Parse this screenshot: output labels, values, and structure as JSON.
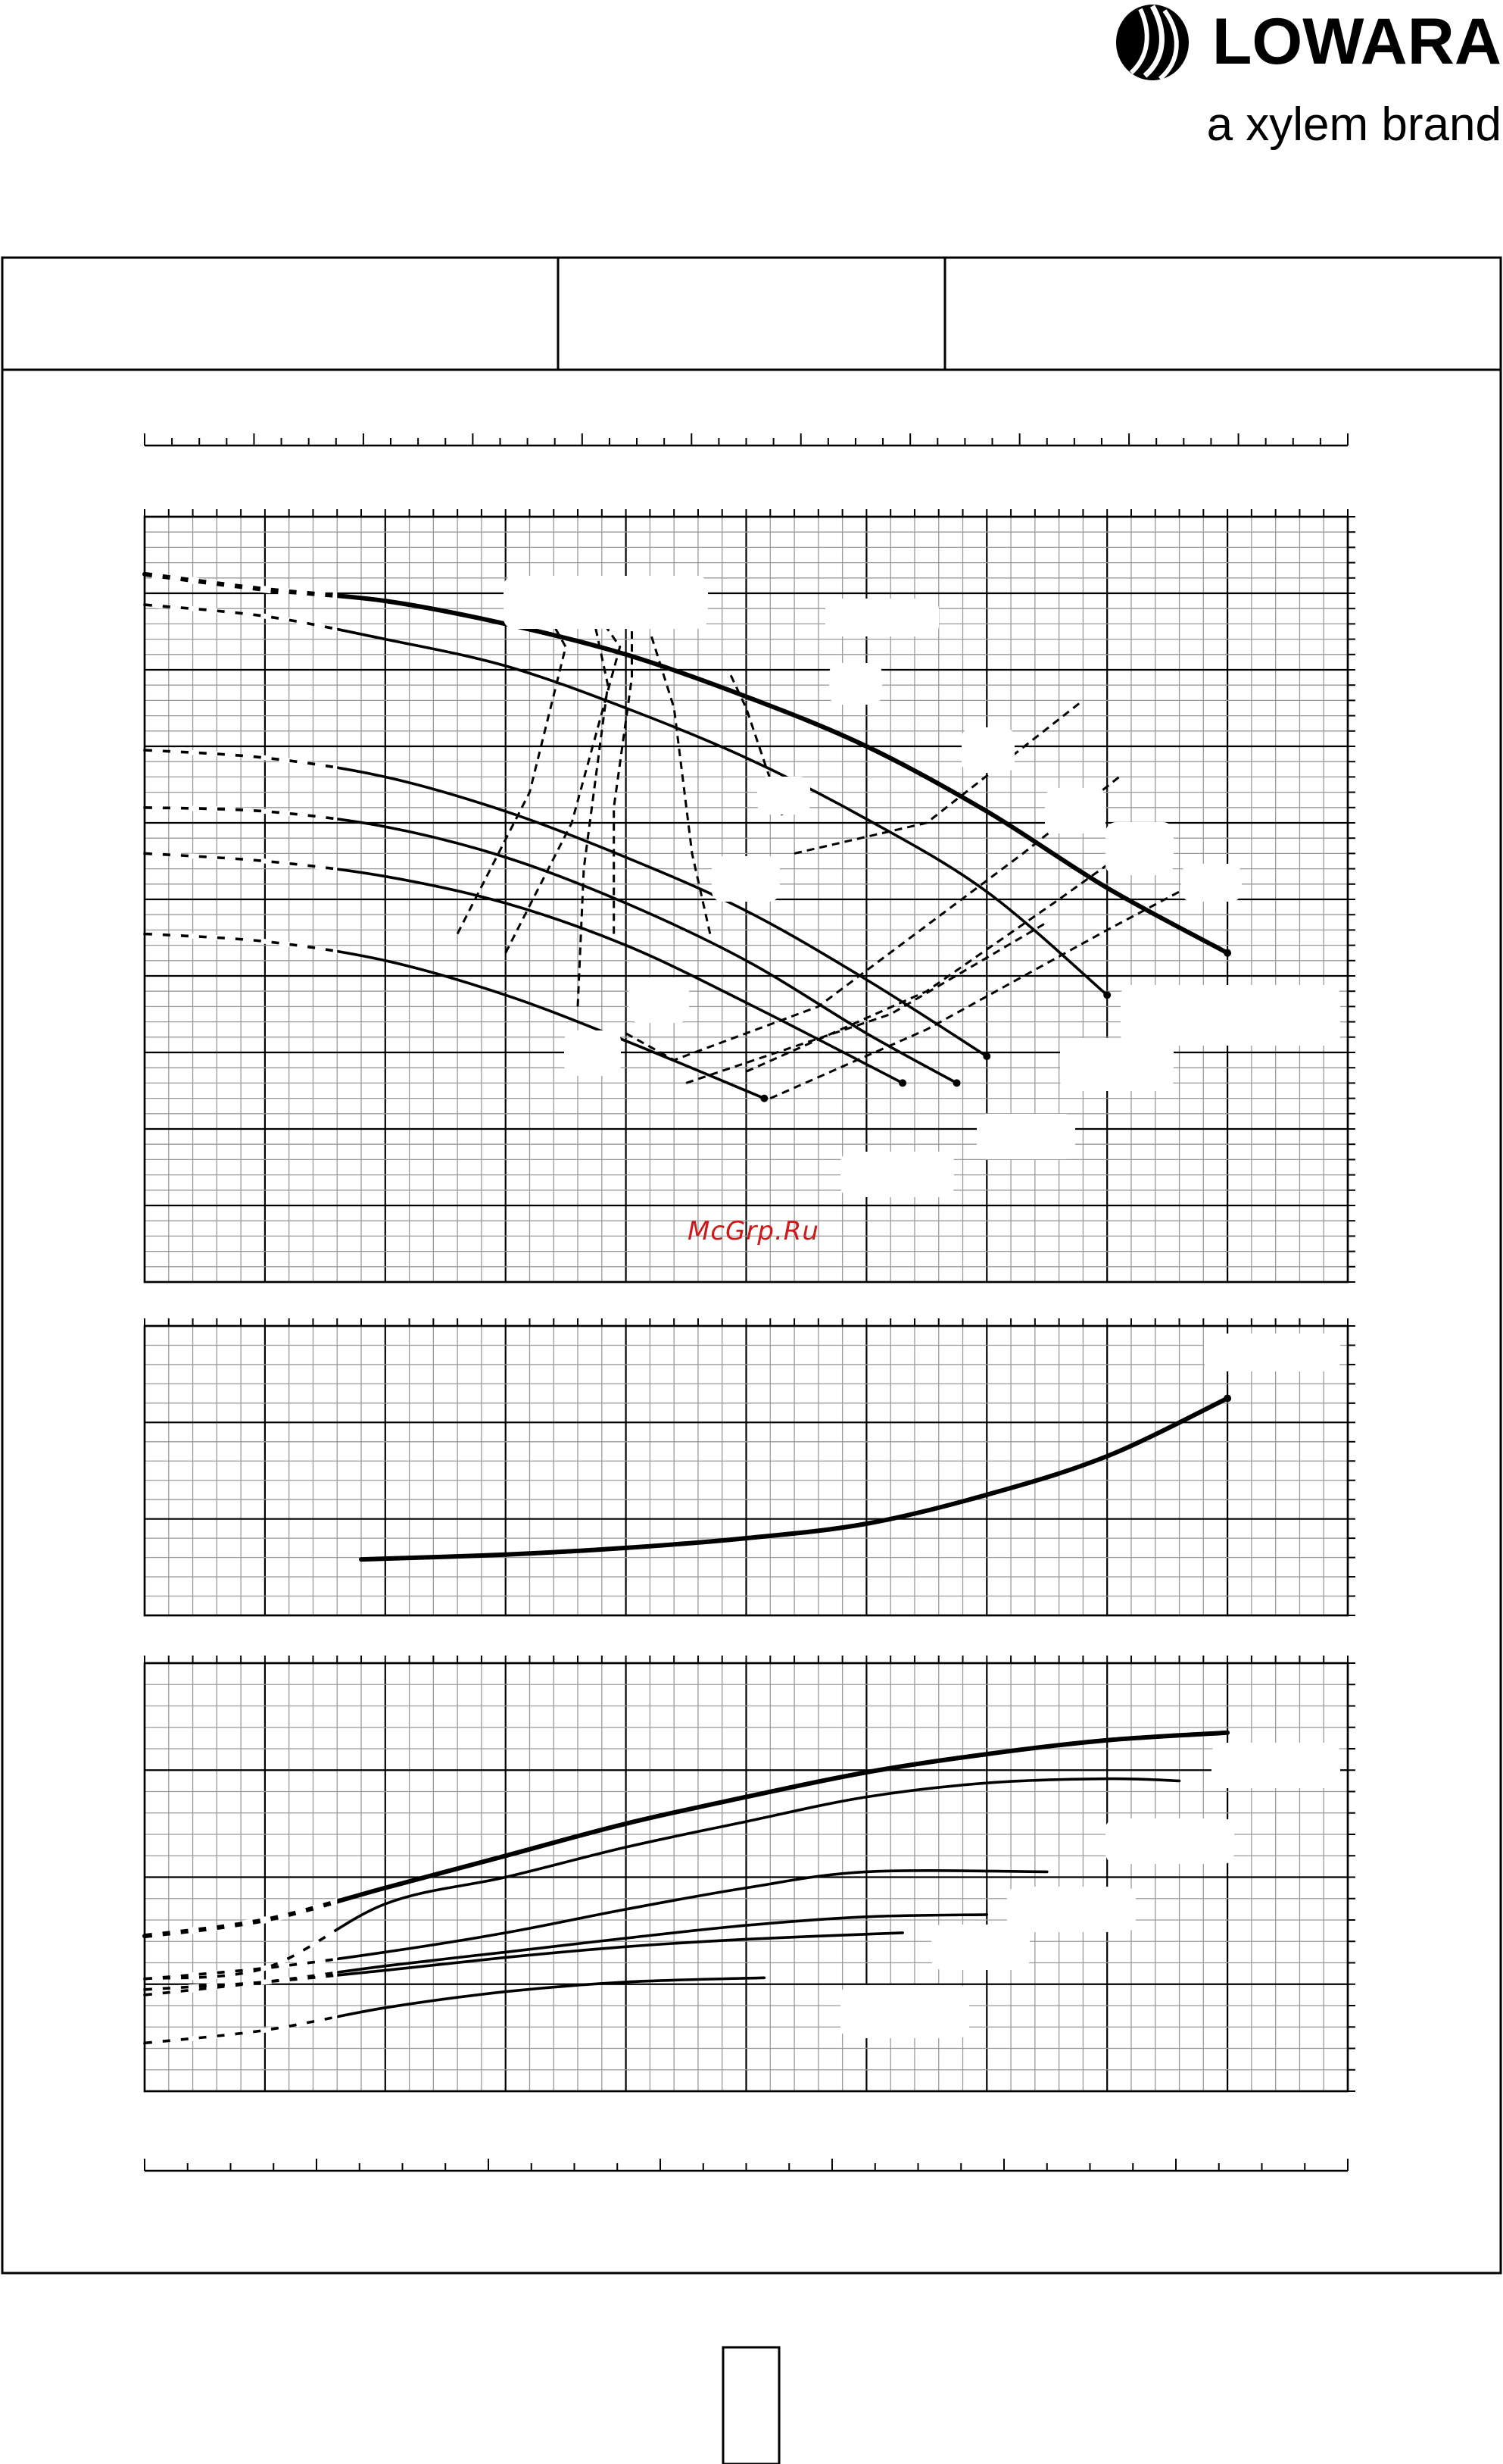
{
  "brand": {
    "name": "LOWARA",
    "tagline": "a xylem brand"
  },
  "watermark": "McGrp.Ru",
  "page": {
    "number": ""
  },
  "chart_data": [
    {
      "type": "line",
      "panel": "head",
      "title": "",
      "xlabel": "",
      "ylabel": "",
      "xlim": [
        0,
        10
      ],
      "ylim": [
        0,
        10
      ],
      "grid": true,
      "note": "Axis tick labels are not printed; values are in relative grid units (major gridlines = 1 unit).",
      "series": [
        {
          "style": "thick",
          "x": [
            0,
            1,
            2,
            3,
            4,
            5,
            6,
            7,
            8,
            9
          ],
          "y": [
            9.25,
            9.05,
            8.9,
            8.6,
            8.2,
            7.65,
            7.0,
            6.15,
            5.15,
            4.3
          ]
        },
        {
          "style": "normal",
          "x": [
            0,
            1,
            2,
            3,
            4,
            5,
            6,
            7,
            8
          ],
          "y": [
            8.85,
            8.7,
            8.4,
            8.05,
            7.5,
            6.85,
            6.05,
            5.1,
            3.75
          ]
        },
        {
          "style": "normal",
          "x": [
            0,
            1,
            2,
            3,
            4,
            5,
            6,
            7
          ],
          "y": [
            6.95,
            6.85,
            6.6,
            6.15,
            5.55,
            4.85,
            3.95,
            2.95
          ]
        },
        {
          "style": "normal",
          "x": [
            0,
            1,
            2,
            3,
            4,
            5,
            6,
            6.75
          ],
          "y": [
            6.2,
            6.15,
            5.95,
            5.55,
            4.95,
            4.2,
            3.25,
            2.6
          ]
        },
        {
          "style": "normal",
          "x": [
            0,
            1,
            2,
            3,
            4,
            5,
            6.3
          ],
          "y": [
            5.6,
            5.5,
            5.3,
            4.95,
            4.4,
            3.65,
            2.6
          ]
        },
        {
          "style": "normal",
          "x": [
            0,
            1,
            2,
            3,
            4,
            5.15
          ],
          "y": [
            4.55,
            4.45,
            4.2,
            3.75,
            3.15,
            2.4
          ]
        }
      ],
      "efficiency_isolines": 7,
      "npsh_isolines": 6
    },
    {
      "type": "line",
      "panel": "npsh",
      "title": "",
      "xlabel": "",
      "ylabel": "",
      "xlim": [
        0,
        10
      ],
      "ylim": [
        0,
        3
      ],
      "grid": true,
      "series": [
        {
          "style": "thick",
          "x": [
            1.8,
            3,
            4,
            5,
            6,
            7,
            8,
            9
          ],
          "y": [
            0.58,
            0.63,
            0.7,
            0.8,
            0.95,
            1.25,
            1.65,
            2.25
          ]
        }
      ]
    },
    {
      "type": "line",
      "panel": "power",
      "title": "",
      "xlabel": "",
      "ylabel": "",
      "xlim": [
        0,
        10
      ],
      "ylim": [
        0,
        4
      ],
      "grid": true,
      "series": [
        {
          "style": "thick",
          "x": [
            0,
            1,
            2,
            3,
            4,
            5,
            6,
            7,
            8,
            9
          ],
          "y": [
            1.45,
            1.6,
            1.9,
            2.2,
            2.5,
            2.75,
            2.98,
            3.15,
            3.28,
            3.35
          ]
        },
        {
          "style": "normal",
          "x": [
            0,
            1,
            2,
            3,
            4,
            5,
            6,
            7,
            8,
            8.6
          ],
          "y": [
            1.05,
            1.15,
            1.75,
            2.0,
            2.28,
            2.52,
            2.75,
            2.88,
            2.92,
            2.9
          ]
        },
        {
          "style": "normal",
          "x": [
            0,
            1,
            2,
            3,
            4,
            5,
            6,
            7.5
          ],
          "y": [
            1.05,
            1.15,
            1.3,
            1.48,
            1.7,
            1.9,
            2.05,
            2.05
          ]
        },
        {
          "style": "normal",
          "x": [
            0,
            1,
            2,
            3,
            4,
            5,
            6,
            7
          ],
          "y": [
            0.9,
            1.02,
            1.17,
            1.3,
            1.43,
            1.55,
            1.63,
            1.65
          ]
        },
        {
          "style": "normal",
          "x": [
            0,
            1,
            2,
            3,
            4,
            5,
            6.3
          ],
          "y": [
            0.95,
            1.02,
            1.13,
            1.25,
            1.35,
            1.42,
            1.48
          ]
        },
        {
          "style": "normal",
          "x": [
            0,
            1,
            2,
            3,
            4,
            5.15
          ],
          "y": [
            0.45,
            0.57,
            0.78,
            0.93,
            1.02,
            1.06
          ]
        }
      ]
    }
  ]
}
